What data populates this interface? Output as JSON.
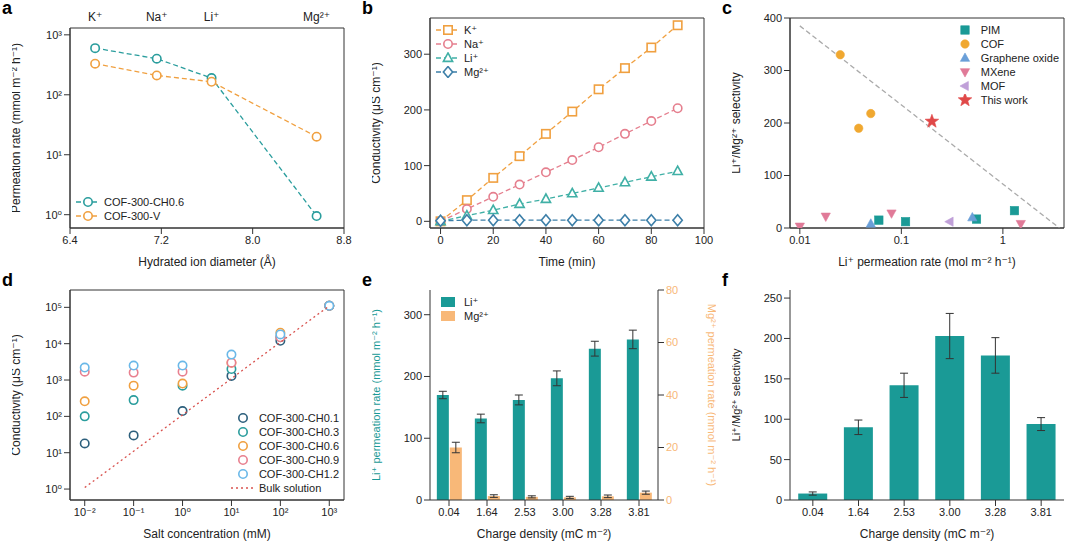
{
  "chart_data": [
    {
      "panel": "a",
      "type": "line",
      "x_label": "Hydrated ion diameter (Å)",
      "y_label": "Permeation rate (mmol m⁻² h⁻¹)",
      "x": [
        6.62,
        7.16,
        7.64,
        8.56
      ],
      "xlim": [
        6.4,
        8.8
      ],
      "xticks": [
        6.4,
        7.2,
        {
          "value": 8,
          "label": "8.0"
        },
        8.8
      ],
      "ylim": [
        0.6,
        1300
      ],
      "yticks": [
        {
          "value": 1,
          "label": "10⁰"
        },
        {
          "value": 10,
          "label": "10¹"
        },
        {
          "value": 100,
          "label": "10²"
        },
        {
          "value": 1000,
          "label": "10³"
        }
      ],
      "log": "y",
      "legend": "lower left",
      "annotations": [
        {
          "text": "K⁺",
          "x": 6.62
        },
        {
          "text": "Na⁺",
          "x": 7.16
        },
        {
          "text": "Li⁺",
          "x": 7.64
        },
        {
          "text": "Mg²⁺",
          "x": 8.56
        }
      ],
      "series": [
        {
          "name": "COF-300-CH0.6",
          "color": "#2a9d9d",
          "marker": "circle_open",
          "line_style": "dashed",
          "values": [
            600,
            400,
            190,
            0.95
          ]
        },
        {
          "name": "COF-300-V",
          "color": "#f0a040",
          "marker": "circle_open",
          "line_style": "dashed",
          "values": [
            330,
            210,
            165,
            20
          ]
        }
      ]
    },
    {
      "panel": "b",
      "type": "line",
      "x_label": "Time (min)",
      "y_label": "Conductivity (μS cm⁻¹)",
      "x": [
        0,
        10,
        20,
        30,
        40,
        50,
        60,
        70,
        80,
        90
      ],
      "xlim": [
        -4,
        100
      ],
      "xticks": [
        0,
        20,
        40,
        60,
        80,
        100
      ],
      "ylim": [
        -12,
        365
      ],
      "yticks": [
        0,
        100,
        200,
        300
      ],
      "legend": "upper left",
      "series": [
        {
          "name": "K⁺",
          "color": "#f0a040",
          "marker": "square_open",
          "line_style": "dashed",
          "values": [
            0,
            38,
            78,
            117,
            157,
            197,
            237,
            275,
            312,
            352
          ]
        },
        {
          "name": "Na⁺",
          "color": "#e57f8e",
          "marker": "circle_open",
          "line_style": "dashed",
          "values": [
            0,
            22,
            44,
            66,
            88,
            110,
            133,
            157,
            180,
            203
          ]
        },
        {
          "name": "Li⁺",
          "color": "#40b0a6",
          "marker": "triangle_open",
          "line_style": "dashed",
          "values": [
            0,
            10,
            20,
            31,
            40,
            50,
            60,
            70,
            80,
            90
          ]
        },
        {
          "name": "Mg²⁺",
          "color": "#3d7fa8",
          "marker": "diamond_open",
          "line_style": "dashed",
          "values": [
            1,
            2,
            2,
            2,
            2,
            2,
            2,
            2,
            2,
            2
          ]
        }
      ]
    },
    {
      "panel": "c",
      "type": "scatter",
      "x_label": "Li⁺ permeation rate (mol m⁻² h⁻¹)",
      "y_label": "Li⁺/Mg²⁺ selectivity",
      "xlim": [
        0.008,
        4
      ],
      "xticks": [
        0.01,
        0.1,
        1
      ],
      "ylim": [
        0,
        400
      ],
      "yticks": [
        0,
        100,
        200,
        300,
        400
      ],
      "log": "x",
      "legend": "upper right",
      "reference_line": {
        "x": [
          0.01,
          3.6
        ],
        "values": [
          385,
          0
        ],
        "color": "#aaaaaa",
        "line_style": "dashed"
      },
      "series": [
        {
          "name": "PIM",
          "color": "#1a9a96",
          "marker": "square",
          "x": [
            0.06,
            0.11,
            0.55,
            1.3
          ],
          "values": [
            15,
            12,
            17,
            33
          ]
        },
        {
          "name": "COF",
          "color": "#f0a830",
          "marker": "circle",
          "x": [
            0.025,
            0.038,
            0.05
          ],
          "values": [
            330,
            190,
            218
          ]
        },
        {
          "name": "Graphene oxide",
          "color": "#6a9fd8",
          "marker": "triangle",
          "x": [
            0.05,
            0.5
          ],
          "values": [
            8,
            20
          ]
        },
        {
          "name": "MXene",
          "color": "#e07a98",
          "marker": "triangle_down",
          "x": [
            0.01,
            0.018,
            0.08,
            1.5
          ],
          "values": [
            3,
            22,
            28,
            8
          ]
        },
        {
          "name": "MOF",
          "color": "#c0a0d8",
          "marker": "triangle_left",
          "x": [
            0.3
          ],
          "values": [
            12
          ]
        },
        {
          "name": "This work",
          "color": "#e04848",
          "marker": "star",
          "x": [
            0.2
          ],
          "values": [
            203
          ]
        }
      ]
    },
    {
      "panel": "d",
      "type": "scatter",
      "x_label": "Salt concentration (mM)",
      "y_label": "Conductivity (μS cm⁻¹)",
      "x": [
        0.01,
        0.1,
        1,
        10,
        100,
        1000
      ],
      "xlim": [
        0.005,
        2000
      ],
      "xticks": [
        {
          "value": 0.01,
          "label": "10⁻²"
        },
        {
          "value": 0.1,
          "label": "10⁻¹"
        },
        {
          "value": 1,
          "label": "10⁰"
        },
        {
          "value": 10,
          "label": "10¹"
        },
        {
          "value": 100,
          "label": "10²"
        },
        {
          "value": 1000,
          "label": "10³"
        }
      ],
      "ylim": [
        0.5,
        300000
      ],
      "yticks": [
        {
          "value": 1,
          "label": "10⁰"
        },
        {
          "value": 10,
          "label": "10¹"
        },
        {
          "value": 100,
          "label": "10²"
        },
        {
          "value": 1000,
          "label": "10³"
        },
        {
          "value": 10000,
          "label": "10⁴"
        },
        {
          "value": 100000,
          "label": "10⁵"
        }
      ],
      "log": true,
      "legend": "lower right",
      "series": [
        {
          "name": "COF-300-CH0.1",
          "color": "#2c5f7c",
          "marker": "circle_open",
          "values": [
            18,
            30,
            140,
            1300,
            12000,
            110000
          ]
        },
        {
          "name": "COF-300-CH0.3",
          "color": "#2a9d9d",
          "marker": "circle_open",
          "values": [
            100,
            280,
            700,
            2000,
            15000,
            110000
          ]
        },
        {
          "name": "COF-300-CH0.6",
          "color": "#f0a040",
          "marker": "circle_open",
          "values": [
            260,
            700,
            800,
            3000,
            20000,
            110000
          ]
        },
        {
          "name": "COF-300-CH0.9",
          "color": "#e8808f",
          "marker": "circle_open",
          "values": [
            1700,
            1600,
            1700,
            3000,
            15000,
            110000
          ]
        },
        {
          "name": "COF-300-CH1.2",
          "color": "#6ab8e8",
          "marker": "circle_open",
          "values": [
            2200,
            2500,
            2500,
            5000,
            18000,
            110000
          ]
        },
        {
          "name": "Bulk solution",
          "type": "line",
          "color": "#d9534f",
          "marker": "none",
          "line_style": "dotted",
          "values": [
            1.1,
            11,
            110,
            1100,
            11000,
            110000
          ]
        }
      ]
    },
    {
      "panel": "e",
      "type": "bar",
      "x_label": "Charge density (mC m⁻²)",
      "y_label": "Li⁺ permeation rate (mmol m⁻² h⁻¹)",
      "y2_label": "Mg²⁺ permeation rate (mmol m⁻² h⁻¹)",
      "categories": [
        "0.04",
        "1.64",
        "2.53",
        "3.00",
        "3.28",
        "3.81"
      ],
      "ylim": [
        0,
        340
      ],
      "yticks": [
        0,
        100,
        200,
        300
      ],
      "y2lim": [
        0,
        80
      ],
      "y2ticks": [
        0,
        20,
        40,
        60,
        80
      ],
      "legend": "upper left",
      "series": [
        {
          "name": "Li⁺",
          "color": "#1a9a96",
          "values": [
            170,
            132,
            162,
            197,
            245,
            260
          ],
          "errors": [
            6,
            7,
            8,
            12,
            12,
            15
          ]
        },
        {
          "name": "Mg²⁺",
          "color": "#f8b878",
          "axis": "y2",
          "values": [
            20,
            1.5,
            1.2,
            1.0,
            1.4,
            2.8
          ],
          "errors": [
            2,
            0.5,
            0.4,
            0.4,
            0.5,
            0.6
          ]
        }
      ]
    },
    {
      "panel": "f",
      "type": "bar",
      "x_label": "Charge density (mC m⁻²)",
      "y_label": "Li⁺/Mg²⁺ selectivity",
      "categories": [
        "0.04",
        "1.64",
        "2.53",
        "3.00",
        "3.28",
        "3.81"
      ],
      "ylim": [
        0,
        260
      ],
      "yticks": [
        0,
        50,
        100,
        150,
        200,
        250
      ],
      "color": "#1a9a96",
      "values": [
        8,
        90,
        142,
        203,
        179,
        94
      ],
      "errors": [
        2,
        9,
        15,
        28,
        22,
        8
      ]
    }
  ]
}
